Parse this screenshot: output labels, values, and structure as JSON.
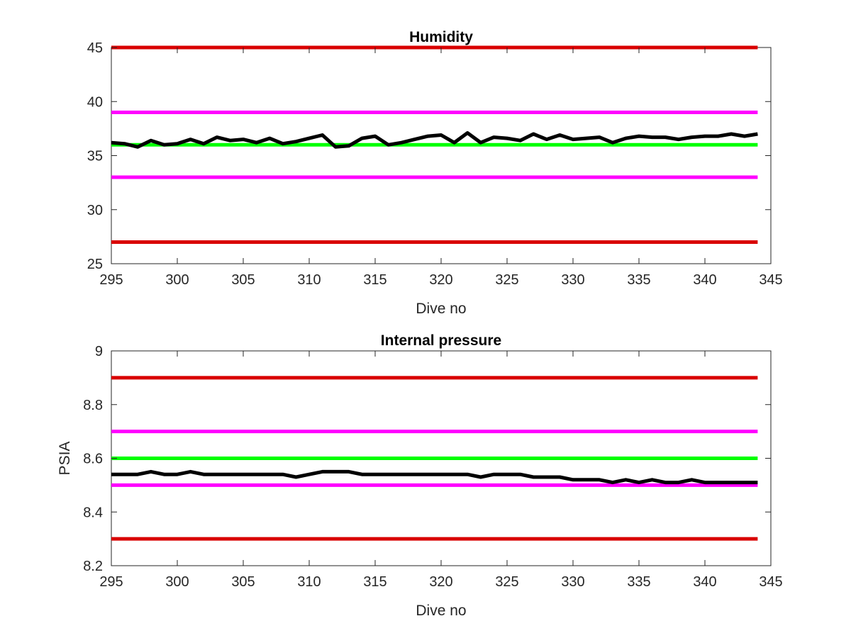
{
  "chart_data": [
    {
      "type": "line",
      "title": "Humidity",
      "xlabel": "Dive no",
      "ylabel": "",
      "xlim": [
        295,
        345
      ],
      "ylim": [
        25,
        45
      ],
      "xticks": [
        295,
        300,
        305,
        310,
        315,
        320,
        325,
        330,
        335,
        340,
        345
      ],
      "yticks": [
        25,
        30,
        35,
        40,
        45
      ],
      "grid": false,
      "limit_lines": [
        {
          "value": 45,
          "color": "#d90000"
        },
        {
          "value": 39,
          "color": "#ff00ff"
        },
        {
          "value": 36,
          "color": "#00ff00"
        },
        {
          "value": 33,
          "color": "#ff00ff"
        },
        {
          "value": 27,
          "color": "#d90000"
        }
      ],
      "series": [
        {
          "color": "#000000",
          "x": [
            295,
            296,
            297,
            298,
            299,
            300,
            301,
            302,
            303,
            304,
            305,
            306,
            307,
            308,
            309,
            310,
            311,
            312,
            313,
            314,
            315,
            316,
            317,
            318,
            319,
            320,
            321,
            322,
            323,
            324,
            325,
            326,
            327,
            328,
            329,
            330,
            331,
            332,
            333,
            334,
            335,
            336,
            337,
            338,
            339,
            340,
            341,
            342,
            343,
            344
          ],
          "values": [
            36.2,
            36.1,
            35.8,
            36.4,
            36.0,
            36.1,
            36.5,
            36.1,
            36.7,
            36.4,
            36.5,
            36.2,
            36.6,
            36.1,
            36.3,
            36.6,
            36.9,
            35.8,
            35.9,
            36.6,
            36.8,
            36.0,
            36.2,
            36.5,
            36.8,
            36.9,
            36.2,
            37.1,
            36.2,
            36.7,
            36.6,
            36.4,
            37.0,
            36.5,
            36.9,
            36.5,
            36.6,
            36.7,
            36.2,
            36.6,
            36.8,
            36.7,
            36.7,
            36.5,
            36.7,
            36.8,
            36.8,
            37.0,
            36.8,
            37.0
          ]
        }
      ]
    },
    {
      "type": "line",
      "title": "Internal pressure",
      "xlabel": "Dive no",
      "ylabel": "PSIA",
      "xlim": [
        295,
        345
      ],
      "ylim": [
        8.2,
        9
      ],
      "xticks": [
        295,
        300,
        305,
        310,
        315,
        320,
        325,
        330,
        335,
        340,
        345
      ],
      "yticks": [
        8.2,
        8.4,
        8.6,
        8.8,
        9
      ],
      "yticklabels": [
        "8.2",
        "8.4",
        "8.6",
        "8.8",
        "9"
      ],
      "grid": false,
      "limit_lines": [
        {
          "value": 8.9,
          "color": "#d90000"
        },
        {
          "value": 8.7,
          "color": "#ff00ff"
        },
        {
          "value": 8.6,
          "color": "#00ff00"
        },
        {
          "value": 8.5,
          "color": "#ff00ff"
        },
        {
          "value": 8.3,
          "color": "#d90000"
        }
      ],
      "series": [
        {
          "color": "#000000",
          "x": [
            295,
            296,
            297,
            298,
            299,
            300,
            301,
            302,
            303,
            304,
            305,
            306,
            307,
            308,
            309,
            310,
            311,
            312,
            313,
            314,
            315,
            316,
            317,
            318,
            319,
            320,
            321,
            322,
            323,
            324,
            325,
            326,
            327,
            328,
            329,
            330,
            331,
            332,
            333,
            334,
            335,
            336,
            337,
            338,
            339,
            340,
            341,
            342,
            343,
            344
          ],
          "values": [
            8.54,
            8.54,
            8.54,
            8.55,
            8.54,
            8.54,
            8.55,
            8.54,
            8.54,
            8.54,
            8.54,
            8.54,
            8.54,
            8.54,
            8.53,
            8.54,
            8.55,
            8.55,
            8.55,
            8.54,
            8.54,
            8.54,
            8.54,
            8.54,
            8.54,
            8.54,
            8.54,
            8.54,
            8.53,
            8.54,
            8.54,
            8.54,
            8.53,
            8.53,
            8.53,
            8.52,
            8.52,
            8.52,
            8.51,
            8.52,
            8.51,
            8.52,
            8.51,
            8.51,
            8.52,
            8.51,
            8.51,
            8.51,
            8.51,
            8.51
          ]
        }
      ]
    }
  ]
}
